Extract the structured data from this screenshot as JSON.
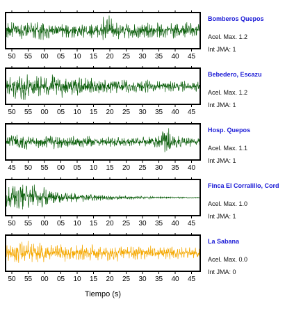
{
  "chart_data": {
    "type": "line",
    "xlabel": "Tiempo (s)",
    "panels": [
      {
        "station": "Bomberos Quepos",
        "accel": "Acel. Max. 1.2",
        "jma": "Int JMA: 1",
        "color": "#0b5e0b",
        "tick_labels": [
          "50",
          "55",
          "00",
          "05",
          "10",
          "15",
          "20",
          "25",
          "30",
          "35",
          "40",
          "45"
        ],
        "first_tick_second": 50,
        "duration_s": 60,
        "envelope": [
          0.55,
          0.6,
          0.5,
          0.6,
          0.55,
          0.5,
          0.55,
          0.5,
          0.55,
          0.5,
          0.95,
          0.55,
          0.5,
          0.55,
          0.5,
          0.55,
          0.5,
          0.55,
          0.5,
          0.5
        ]
      },
      {
        "station": "Bebedero, Escazu",
        "accel": "Acel. Max. 1.2",
        "jma": "Int JMA: 1",
        "color": "#0b5e0b",
        "tick_labels": [
          "50",
          "55",
          "00",
          "05",
          "10",
          "15",
          "20",
          "25",
          "30",
          "35",
          "40",
          "45"
        ],
        "first_tick_second": 50,
        "duration_s": 60,
        "envelope": [
          0.75,
          0.9,
          0.85,
          0.8,
          0.75,
          0.7,
          0.65,
          0.6,
          0.55,
          0.5,
          0.5,
          0.45,
          0.45,
          0.4,
          0.4,
          0.38,
          0.36,
          0.35,
          0.34,
          0.33
        ]
      },
      {
        "station": "Hosp. Quepos",
        "accel": "Acel. Max. 1.1",
        "jma": "Int JMA: 1",
        "color": "#0b5e0b",
        "tick_labels": [
          "45",
          "50",
          "55",
          "00",
          "05",
          "10",
          "15",
          "20",
          "25",
          "30",
          "35",
          "40"
        ],
        "first_tick_second": 45,
        "duration_s": 60,
        "envelope": [
          0.45,
          0.55,
          0.5,
          0.45,
          0.45,
          0.4,
          0.4,
          0.38,
          0.36,
          0.34,
          0.33,
          0.32,
          0.3,
          0.3,
          0.35,
          0.45,
          0.95,
          0.4,
          0.3,
          0.28
        ]
      },
      {
        "station": "Finca El Corralillo, Cord",
        "accel": "Acel. Max. 1.0",
        "jma": "Int JMA: 1",
        "color": "#0b5e0b",
        "tick_labels": [
          "50",
          "55",
          "00",
          "05",
          "10",
          "15",
          "20",
          "25",
          "30",
          "35",
          "40",
          "45"
        ],
        "first_tick_second": 50,
        "duration_s": 60,
        "envelope": [
          0.8,
          0.95,
          0.8,
          0.65,
          0.55,
          0.45,
          0.38,
          0.3,
          0.25,
          0.2,
          0.17,
          0.14,
          0.12,
          0.1,
          0.08,
          0.07,
          0.06,
          0.05,
          0.05,
          0.04
        ]
      },
      {
        "station": "La Sabana",
        "accel": "Acel. Max. 0.0",
        "jma": "Int JMA: 0",
        "color": "#f5a800",
        "tick_labels": [
          "50",
          "55",
          "00",
          "05",
          "10",
          "15",
          "20",
          "25",
          "30",
          "35",
          "40",
          "45"
        ],
        "first_tick_second": 50,
        "duration_s": 60,
        "envelope": [
          0.6,
          0.85,
          0.75,
          0.65,
          0.6,
          0.6,
          0.55,
          0.55,
          0.55,
          0.5,
          0.5,
          0.5,
          0.45,
          0.45,
          0.45,
          0.4,
          0.4,
          0.4,
          0.38,
          0.38
        ]
      }
    ]
  }
}
